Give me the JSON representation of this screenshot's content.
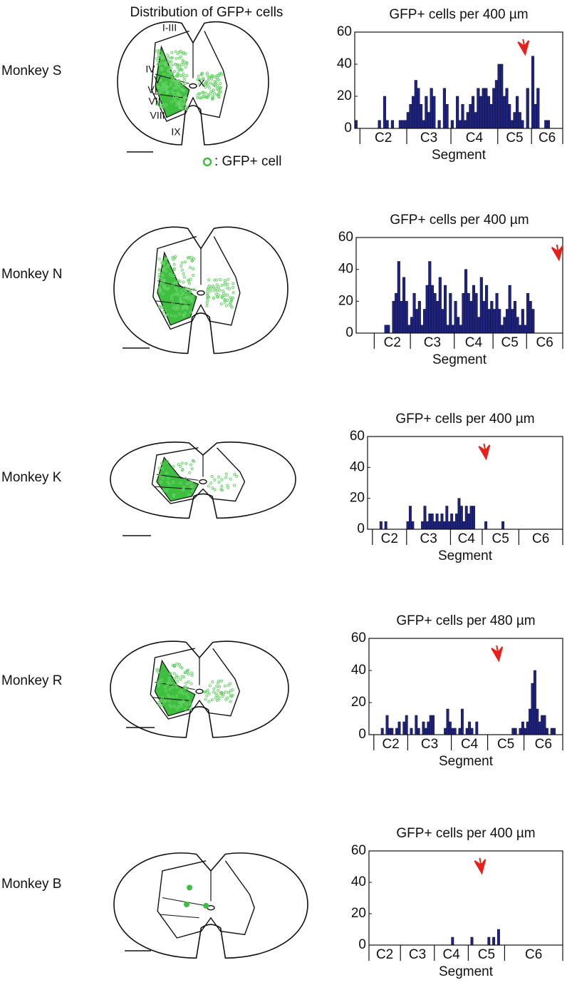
{
  "column_title": "Distribution of GFP+ cells",
  "monkeys": [
    "Monkey S",
    "Monkey N",
    "Monkey K",
    "Monkey R",
    "Monkey B"
  ],
  "laminae": [
    "I-III",
    "IV",
    "V",
    "VI",
    "VII",
    "VIII",
    "IX",
    "X"
  ],
  "legend": ": GFP+ cell",
  "chart_data": [
    {
      "type": "bar",
      "title": "GFP+ cells per 400 µm",
      "x_label": "Segment",
      "color": "#1f237a",
      "xlim": [
        0,
        80
      ],
      "ylim": [
        0,
        60
      ],
      "yticks": [
        0,
        20,
        40,
        60
      ],
      "segments": [
        "C2",
        "C3",
        "C4",
        "C5",
        "C6"
      ],
      "segment_bounds": [
        2,
        20,
        37,
        55,
        68,
        80
      ],
      "arrow_x": 65,
      "values": [
        5,
        0,
        0,
        0,
        0,
        0,
        0,
        0,
        0,
        5,
        0,
        20,
        5,
        0,
        5,
        0,
        0,
        5,
        5,
        5,
        10,
        15,
        20,
        30,
        25,
        15,
        5,
        20,
        10,
        25,
        20,
        0,
        5,
        0,
        25,
        15,
        0,
        5,
        0,
        20,
        5,
        15,
        5,
        10,
        15,
        20,
        10,
        25,
        20,
        25,
        25,
        20,
        15,
        25,
        30,
        40,
        40,
        20,
        25,
        15,
        5,
        10,
        20,
        10,
        5,
        0,
        25,
        0,
        45,
        15,
        25,
        0,
        0,
        5,
        5,
        0,
        0,
        0,
        0,
        0
      ]
    },
    {
      "type": "bar",
      "title": "GFP+ cells per 400 µm",
      "x_label": "Segment",
      "color": "#1f237a",
      "xlim": [
        0,
        80
      ],
      "ylim": [
        0,
        60
      ],
      "yticks": [
        0,
        20,
        40,
        60
      ],
      "segments": [
        "C2",
        "C3",
        "C4",
        "C5",
        "C6"
      ],
      "segment_bounds": [
        7,
        21,
        38,
        53,
        66,
        80
      ],
      "arrow_x": 78,
      "values": [
        0,
        0,
        0,
        0,
        0,
        0,
        0,
        0,
        0,
        0,
        0,
        5,
        5,
        0,
        20,
        25,
        45,
        20,
        35,
        20,
        5,
        10,
        25,
        15,
        20,
        5,
        15,
        30,
        45,
        30,
        25,
        20,
        35,
        15,
        30,
        5,
        25,
        5,
        20,
        10,
        5,
        25,
        40,
        25,
        20,
        30,
        25,
        10,
        35,
        20,
        30,
        15,
        20,
        15,
        25,
        15,
        5,
        10,
        15,
        30,
        15,
        20,
        10,
        5,
        15,
        5,
        25,
        20,
        15,
        0,
        0,
        0,
        0,
        0,
        0,
        0,
        0,
        0,
        0,
        0
      ]
    },
    {
      "type": "bar",
      "title": "GFP+ cells per 400 µm",
      "x_label": "Segment",
      "color": "#1f237a",
      "xlim": [
        0,
        80
      ],
      "ylim": [
        0,
        60
      ],
      "yticks": [
        0,
        20,
        40,
        60
      ],
      "segments": [
        "C2",
        "C3",
        "C4",
        "C5",
        "C6"
      ],
      "segment_bounds": [
        2,
        16,
        34,
        47,
        62,
        80
      ],
      "arrow_x": 48,
      "values": [
        0,
        0,
        0,
        0,
        0,
        5,
        0,
        5,
        0,
        0,
        0,
        0,
        0,
        0,
        0,
        0,
        5,
        15,
        5,
        0,
        0,
        0,
        5,
        15,
        5,
        10,
        10,
        5,
        10,
        5,
        10,
        5,
        15,
        5,
        10,
        5,
        10,
        20,
        15,
        5,
        15,
        10,
        15,
        15,
        0,
        0,
        0,
        0,
        5,
        0,
        0,
        0,
        0,
        0,
        0,
        5,
        0,
        0,
        0,
        0,
        0,
        0,
        0,
        0,
        0,
        0,
        0,
        0,
        0,
        0,
        0,
        0,
        0,
        0,
        0,
        0,
        0,
        0,
        0,
        0
      ]
    },
    {
      "type": "bar",
      "title": "GFP+ cells per 480 µm",
      "x_label": "Segment",
      "color": "#1f237a",
      "xlim": [
        0,
        80
      ],
      "ylim": [
        0,
        60
      ],
      "yticks": [
        0,
        20,
        40,
        60
      ],
      "segments": [
        "C2",
        "C3",
        "C4",
        "C5",
        "C6"
      ],
      "segment_bounds": [
        2,
        16,
        34,
        49,
        64,
        80
      ],
      "arrow_x": 53,
      "values": [
        0,
        0,
        0,
        0,
        0,
        4,
        0,
        12,
        4,
        4,
        0,
        4,
        8,
        0,
        8,
        12,
        0,
        4,
        0,
        12,
        4,
        0,
        8,
        4,
        8,
        12,
        12,
        0,
        0,
        0,
        0,
        4,
        16,
        8,
        4,
        4,
        0,
        4,
        16,
        0,
        4,
        8,
        4,
        0,
        8,
        0,
        0,
        0,
        0,
        0,
        0,
        0,
        0,
        0,
        0,
        0,
        0,
        0,
        0,
        4,
        4,
        0,
        4,
        8,
        4,
        8,
        16,
        32,
        40,
        16,
        8,
        12,
        12,
        4,
        0,
        4,
        4,
        0,
        0,
        0
      ]
    },
    {
      "type": "bar",
      "title": "GFP+ cells per 400 µm",
      "x_label": "Segment",
      "color": "#1f237a",
      "xlim": [
        0,
        80
      ],
      "ylim": [
        0,
        60
      ],
      "yticks": [
        0,
        20,
        40,
        60
      ],
      "segments": [
        "C2",
        "C3",
        "C4",
        "C5",
        "C6"
      ],
      "segment_bounds": [
        0,
        13,
        27,
        41,
        56,
        80
      ],
      "arrow_x": 46,
      "values": [
        0,
        0,
        0,
        0,
        0,
        0,
        0,
        0,
        0,
        0,
        0,
        0,
        0,
        0,
        0,
        0,
        0,
        0,
        0,
        0,
        0,
        0,
        0,
        0,
        0,
        0,
        0,
        0,
        0,
        0,
        0,
        0,
        0,
        0,
        5,
        0,
        0,
        0,
        0,
        0,
        0,
        0,
        5,
        0,
        0,
        0,
        0,
        0,
        0,
        5,
        0,
        5,
        0,
        10,
        0,
        0,
        0,
        0,
        0,
        0,
        0,
        0,
        0,
        0,
        0,
        0,
        0,
        0,
        0,
        0,
        0,
        0,
        0,
        0,
        0,
        0,
        0,
        0,
        0,
        0
      ]
    }
  ]
}
